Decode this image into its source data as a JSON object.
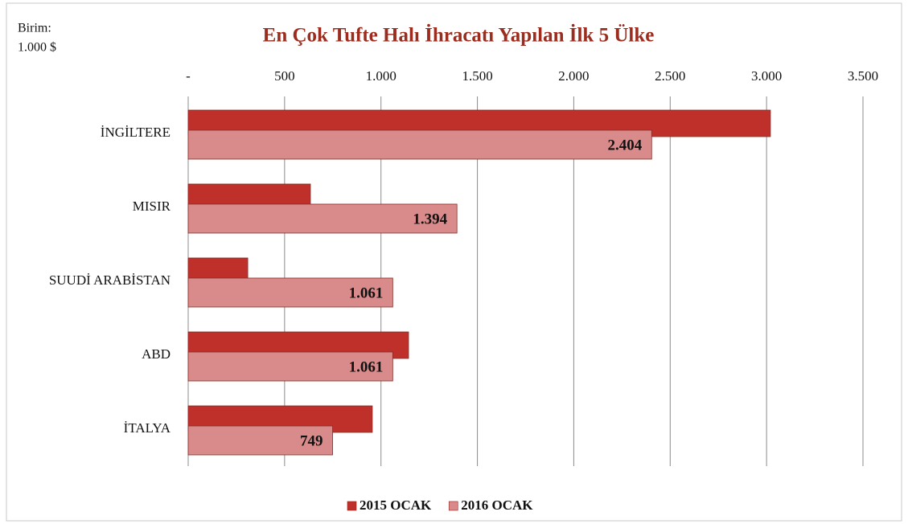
{
  "chart_data": {
    "type": "hbar",
    "title": "En Çok Tufte Halı İhracatı Yapılan İlk 5 Ülke",
    "annotations": [
      "Birim:",
      "1.000 $"
    ],
    "categories": [
      "İNGİLTERE",
      "MISIR",
      "SUUDİ ARABİSTAN",
      "ABD",
      "İTALYA"
    ],
    "series": [
      {
        "name": "2015 OCAK",
        "color": "#c0302a",
        "values": [
          3020,
          634,
          309,
          1143,
          955
        ]
      },
      {
        "name": "2016 OCAK",
        "color": "#d98a8a",
        "values": [
          2404,
          1394,
          1061,
          1061,
          749
        ],
        "value_labels": [
          "2.404",
          "1.394",
          "1.061",
          "1.061",
          "749"
        ]
      }
    ],
    "xlim": [
      0,
      3500
    ],
    "xticks": [
      {
        "value": 0,
        "label": "-"
      },
      500,
      {
        "value": 1000,
        "label": "1.000"
      },
      {
        "value": 1500,
        "label": "1.500"
      },
      {
        "value": 2000,
        "label": "2.000"
      },
      {
        "value": 2500,
        "label": "2.500"
      },
      {
        "value": 3000,
        "label": "3.000"
      },
      {
        "value": 3500,
        "label": "3.500"
      }
    ],
    "grid": true,
    "legend": "bottom"
  }
}
